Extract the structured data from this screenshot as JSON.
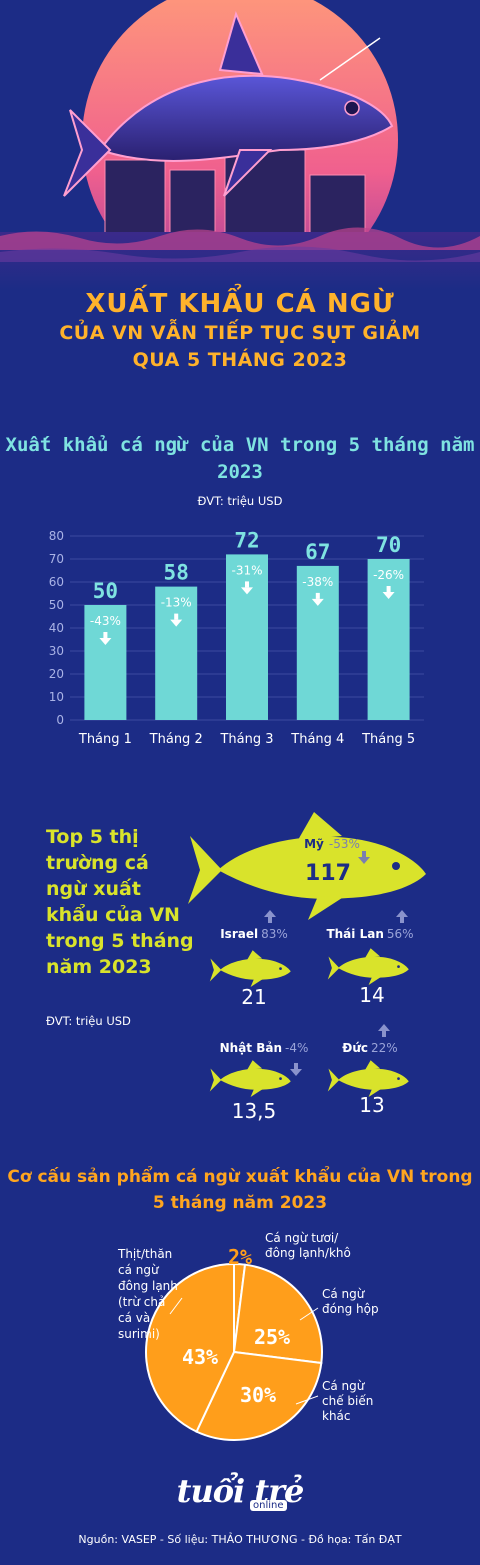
{
  "header": {
    "title_line1": "XUẤT KHẨU CÁ NGỪ",
    "title_line2": "CỦA VN VẪN TIẾP TỤC SỤT GIẢM",
    "title_line3": "QUA 5 THÁNG 2023"
  },
  "colors": {
    "background": "#1c2c86",
    "bar": "#6fd8d6",
    "fish": "#d9e32b",
    "pie": "#ff9e1b",
    "title": "#ffb22b"
  },
  "chart_data": [
    {
      "type": "bar",
      "title": "Xuất khẩu cá ngừ của VN trong 5 tháng năm 2023",
      "unit": "ĐVT: triệu USD",
      "categories": [
        "Tháng 1",
        "Tháng 2",
        "Tháng 3",
        "Tháng 4",
        "Tháng 5"
      ],
      "values": [
        50,
        58,
        72,
        67,
        70
      ],
      "value_labels": [
        "50",
        "58",
        "72",
        "67",
        "70"
      ],
      "changes": [
        "-43%",
        "-13%",
        "-31%",
        "-38%",
        "-26%"
      ],
      "ylim": [
        0,
        80
      ],
      "yticks": [
        "0",
        "10",
        "20",
        "30",
        "40",
        "50",
        "60",
        "70",
        "80"
      ],
      "grid": true
    },
    {
      "type": "table",
      "title": "Top 5 thị trường cá ngừ xuất khẩu của VN trong 5 tháng năm 2023",
      "unit": "ĐVT: triệu USD",
      "markets": [
        {
          "name": "Mỹ",
          "change": "-53%",
          "value_label": "117",
          "value": 117,
          "direction": "down"
        },
        {
          "name": "Israel",
          "change": "83%",
          "value_label": "21",
          "value": 21,
          "direction": "up"
        },
        {
          "name": "Thái Lan",
          "change": "56%",
          "value_label": "14",
          "value": 14,
          "direction": "up"
        },
        {
          "name": "Nhật Bản",
          "change": "-4%",
          "value_label": "13,5",
          "value": 13.5,
          "direction": "down"
        },
        {
          "name": "Đức",
          "change": "22%",
          "value_label": "13",
          "value": 13,
          "direction": "up"
        }
      ]
    },
    {
      "type": "pie",
      "title": "Cơ cấu sản phẩm cá ngừ xuất khẩu của VN trong 5 tháng năm 2023",
      "slices": [
        {
          "label_lines": [
            "Cá ngừ tươi/",
            "đông lạnh/khô"
          ],
          "value": 2,
          "value_label": "2%"
        },
        {
          "label_lines": [
            "Cá ngừ",
            "đóng hộp"
          ],
          "value": 25,
          "value_label": "25%"
        },
        {
          "label_lines": [
            "Cá ngừ",
            "chế biến",
            "khác"
          ],
          "value": 30,
          "value_label": "30%"
        },
        {
          "label_lines": [
            "Thịt/thăn",
            "cá ngừ",
            "đông lạnh",
            "(trừ chả",
            "cá và",
            "surimi)"
          ],
          "value": 43,
          "value_label": "43%"
        }
      ]
    }
  ],
  "brand": {
    "logo": "tuổi trẻ",
    "logo_sub": "online"
  },
  "footer": {
    "source": "Nguồn: VASEP - Số liệu: THẢO THƯƠNG - Đồ họa: Tấn ĐẠT"
  }
}
